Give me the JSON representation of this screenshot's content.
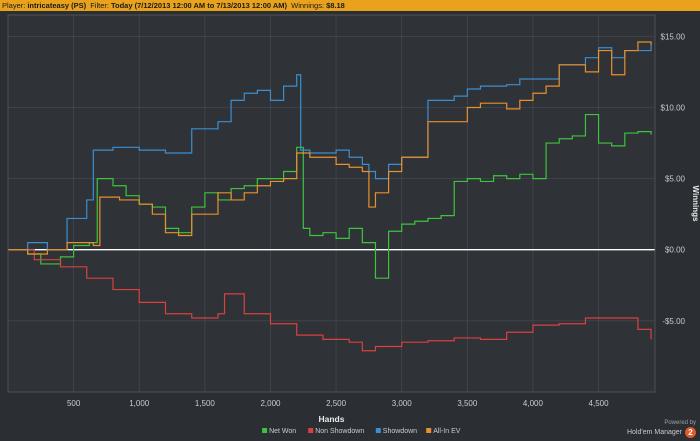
{
  "header": {
    "player_label": "Player:",
    "player_value": "intricateasy (PS)",
    "filter_label": "Filter:",
    "filter_value": "Today (7/12/2013 12:00 AM to 7/13/2013 12:00 AM)",
    "winnings_label": "Winnings:",
    "winnings_value": "$8.18"
  },
  "brand": {
    "powered_by": "Powered by",
    "name": "Hold'em Manager",
    "badge": "2"
  },
  "chart_data": {
    "type": "line",
    "title": "",
    "xlabel": "Hands",
    "ylabel": "Winnings",
    "xlim": [
      0,
      4930
    ],
    "ylim": [
      -10,
      16.5
    ],
    "x_ticks": [
      500,
      1000,
      1500,
      2000,
      2500,
      3000,
      3500,
      4000,
      4500
    ],
    "x_tick_labels": [
      "500",
      "1,000",
      "1,500",
      "2,000",
      "2,500",
      "3,000",
      "3,500",
      "4,000",
      "4,500"
    ],
    "y_ticks": [
      -5,
      0,
      5,
      10,
      15
    ],
    "y_tick_labels": [
      "-$5.00",
      "$0.00",
      "$5.00",
      "$10.00",
      "$15.00"
    ],
    "grid": true,
    "legend_position": "bottom-center",
    "series": [
      {
        "name": "Net Won",
        "color": "#3cc43c",
        "x": [
          0,
          150,
          250,
          400,
          500,
          620,
          680,
          800,
          900,
          1000,
          1100,
          1200,
          1300,
          1400,
          1500,
          1600,
          1700,
          1800,
          1900,
          2000,
          2100,
          2200,
          2250,
          2300,
          2400,
          2500,
          2600,
          2700,
          2800,
          2900,
          3000,
          3100,
          3200,
          3300,
          3400,
          3500,
          3600,
          3700,
          3800,
          3900,
          4000,
          4100,
          4200,
          4300,
          4400,
          4500,
          4600,
          4700,
          4800,
          4900
        ],
        "values": [
          0,
          -0.3,
          -1,
          -0.5,
          0.3,
          0.5,
          5,
          4.5,
          3.8,
          3.2,
          3,
          1.5,
          1.2,
          3,
          4,
          3.5,
          4.3,
          4.5,
          5,
          5,
          5.5,
          7.2,
          1.5,
          1,
          1.2,
          0.8,
          1.5,
          0.5,
          -2,
          1.3,
          1.8,
          2,
          2.2,
          2.4,
          4.8,
          5,
          4.8,
          5.2,
          5,
          5.3,
          5,
          7.5,
          7.8,
          8,
          9.5,
          7.5,
          7.3,
          8.2,
          8.3,
          8.1
        ]
      },
      {
        "name": "Non Showdown",
        "color": "#d94040",
        "x": [
          0,
          200,
          400,
          600,
          800,
          1000,
          1200,
          1400,
          1600,
          1650,
          1800,
          2000,
          2200,
          2400,
          2600,
          2700,
          2800,
          3000,
          3200,
          3400,
          3600,
          3800,
          4000,
          4200,
          4400,
          4600,
          4800,
          4900
        ],
        "values": [
          0,
          -0.7,
          -1.2,
          -2,
          -2.8,
          -3.7,
          -4.5,
          -4.8,
          -4.5,
          -3.1,
          -4.5,
          -5.2,
          -6,
          -6.3,
          -6.5,
          -7.1,
          -6.8,
          -6.5,
          -6.4,
          -6.2,
          -6.3,
          -5.8,
          -5.3,
          -5.2,
          -4.8,
          -4.8,
          -5.6,
          -6.3
        ]
      },
      {
        "name": "Showdown",
        "color": "#3a8fd0",
        "x": [
          0,
          150,
          300,
          450,
          600,
          650,
          800,
          1000,
          1200,
          1400,
          1600,
          1700,
          1800,
          1900,
          2000,
          2100,
          2200,
          2230,
          2300,
          2500,
          2600,
          2700,
          2750,
          2800,
          2900,
          3000,
          3200,
          3400,
          3500,
          3600,
          3800,
          3900,
          4000,
          4200,
          4400,
          4500,
          4600,
          4700,
          4900
        ],
        "values": [
          0,
          0.5,
          0,
          2.2,
          3.5,
          7,
          7.2,
          7,
          6.8,
          8.5,
          9,
          10.5,
          11,
          11.2,
          10.5,
          11.5,
          12.3,
          7,
          6.8,
          7,
          6.5,
          6,
          5.5,
          5,
          6,
          6.5,
          10.5,
          10.8,
          11.3,
          11.5,
          11.6,
          12,
          12,
          13,
          13.5,
          14.2,
          13.5,
          14,
          14.5
        ]
      },
      {
        "name": "All-In EV",
        "color": "#e8902c",
        "x": [
          0,
          150,
          300,
          450,
          600,
          650,
          700,
          850,
          1000,
          1100,
          1200,
          1300,
          1400,
          1600,
          1700,
          1800,
          1900,
          2000,
          2100,
          2200,
          2300,
          2500,
          2600,
          2700,
          2750,
          2800,
          2900,
          3000,
          3200,
          3400,
          3500,
          3600,
          3800,
          3900,
          4000,
          4100,
          4200,
          4400,
          4500,
          4600,
          4700,
          4800,
          4900
        ],
        "values": [
          0,
          -0.3,
          0,
          0.5,
          0.5,
          0.3,
          3.7,
          3.5,
          3.2,
          2.5,
          1.2,
          1,
          2.5,
          4,
          3.5,
          4,
          4.5,
          4.8,
          5,
          6.8,
          6.5,
          6,
          5.8,
          5.5,
          3,
          4,
          5.5,
          6.5,
          9,
          9,
          10,
          10.3,
          9.9,
          10.5,
          11,
          11.5,
          13,
          12.5,
          14,
          12.3,
          14,
          14.6,
          14.4
        ]
      }
    ]
  }
}
